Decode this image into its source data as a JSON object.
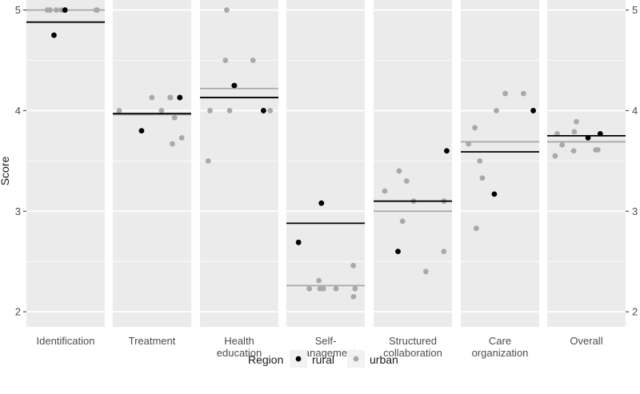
{
  "chart_data": {
    "type": "scatter",
    "ylabel": "Score",
    "ylim": [
      1.85,
      5.1
    ],
    "yticks": [
      2,
      3,
      4,
      5
    ],
    "colors": {
      "rural": "#000000",
      "urban": "#a9a9a9",
      "panel": "#ebebeb",
      "grid": "#ffffff"
    },
    "legend": {
      "title": "Region",
      "entries": [
        "rural",
        "urban"
      ],
      "placement": "bottom"
    },
    "panels": [
      {
        "label": [
          "Identification"
        ],
        "rural": [
          5.0,
          4.75
        ],
        "urban": [
          5.0,
          5.0,
          5.0,
          5.0,
          5.0,
          5.0
        ],
        "rural_mean": 4.88,
        "urban_mean": 5.0
      },
      {
        "label": [
          "Treatment"
        ],
        "rural": [
          4.13,
          3.8
        ],
        "urban": [
          4.0,
          4.0,
          3.67,
          4.13,
          3.73,
          3.93,
          4.13,
          4.13
        ],
        "rural_mean": 3.97,
        "urban_mean": 3.96
      },
      {
        "label": [
          "Health",
          "education"
        ],
        "rural": [
          4.0,
          4.25
        ],
        "urban": [
          4.0,
          4.5,
          4.0,
          4.0,
          4.25,
          3.5,
          4.5,
          5.0
        ],
        "rural_mean": 4.13,
        "urban_mean": 4.22
      },
      {
        "label": [
          "Self-",
          "management"
        ],
        "rural": [
          2.69,
          3.08
        ],
        "urban": [
          2.23,
          2.31,
          2.15,
          2.23,
          2.23,
          2.46,
          2.23,
          2.23
        ],
        "rural_mean": 2.88,
        "urban_mean": 2.26
      },
      {
        "label": [
          "Structured",
          "collaboration"
        ],
        "rural": [
          2.6,
          3.6
        ],
        "urban": [
          2.4,
          3.3,
          3.1,
          2.9,
          3.1,
          2.6,
          3.4,
          3.2
        ],
        "rural_mean": 3.1,
        "urban_mean": 3.0
      },
      {
        "label": [
          "Care",
          "organization"
        ],
        "rural": [
          4.0,
          3.17
        ],
        "urban": [
          2.83,
          3.67,
          3.33,
          3.5,
          4.17,
          4.0,
          3.83,
          4.17
        ],
        "rural_mean": 3.59,
        "urban_mean": 3.69
      },
      {
        "label": [
          "Overall"
        ],
        "rural": [
          3.73,
          3.77
        ],
        "urban": [
          3.61,
          3.61,
          3.77,
          3.66,
          3.6,
          3.55,
          3.79,
          3.89
        ],
        "rural_mean": 3.75,
        "urban_mean": 3.69
      }
    ]
  }
}
